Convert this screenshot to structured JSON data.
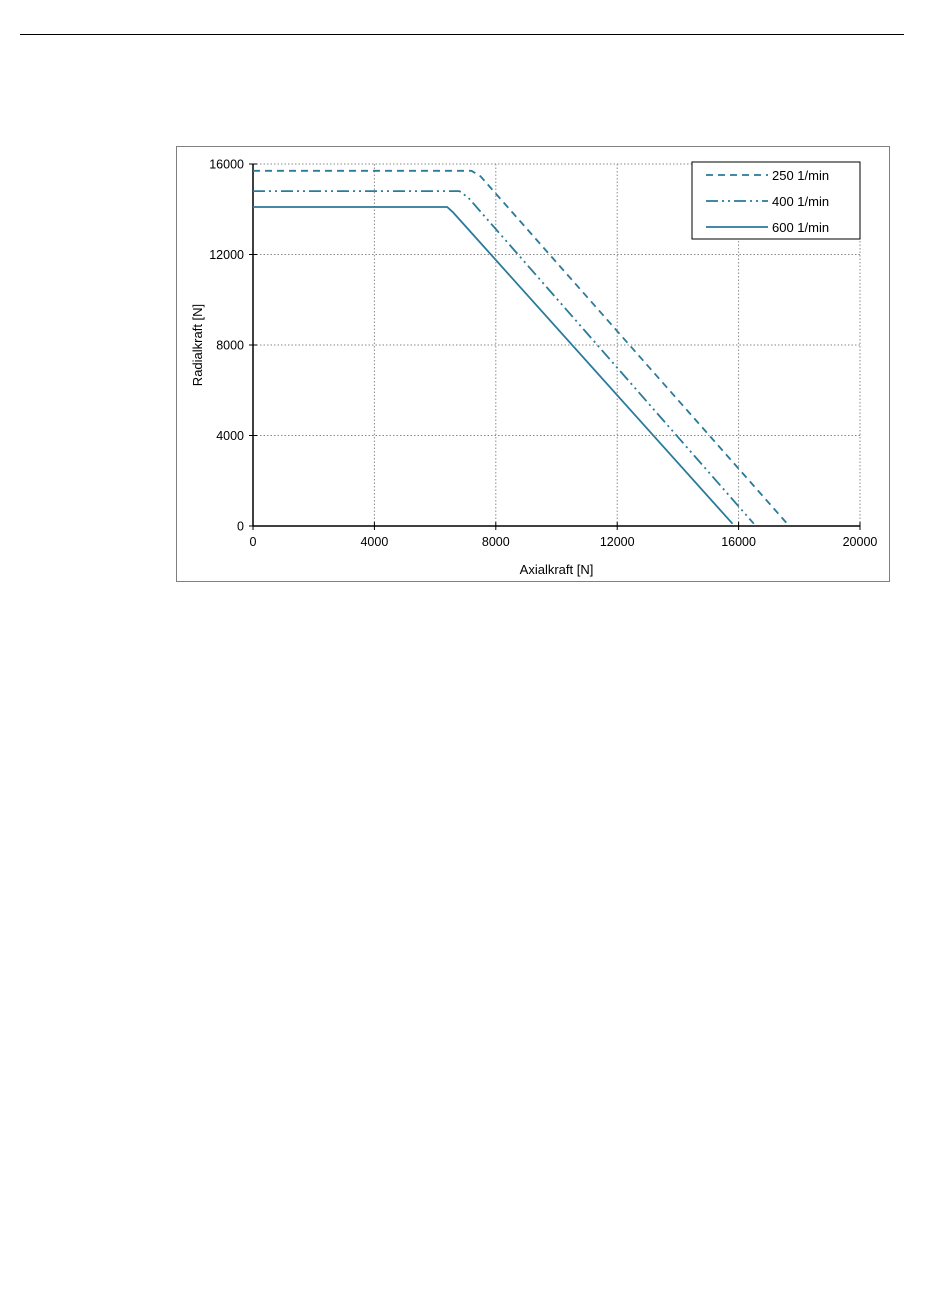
{
  "chart_data": {
    "type": "line",
    "xlabel": "Axialkraft [N]",
    "ylabel": "Radialkraft [N]",
    "xlim": [
      0,
      20000
    ],
    "ylim": [
      0,
      16000
    ],
    "x_ticks": [
      "0",
      "4000",
      "8000",
      "12000",
      "16000",
      "20000"
    ],
    "y_ticks": [
      "0",
      "4000",
      "8000",
      "12000",
      "16000"
    ],
    "grid": true,
    "legend_position": "top-right",
    "line_color": "#2a7a9a",
    "series": [
      {
        "name": "250 1/min",
        "dash": "dashed",
        "points": [
          [
            0,
            15700
          ],
          [
            7200,
            15700
          ],
          [
            7500,
            15450
          ],
          [
            17600,
            100
          ]
        ]
      },
      {
        "name": "400 1/min",
        "dash": "dash-dot-dot",
        "points": [
          [
            0,
            14800
          ],
          [
            6800,
            14800
          ],
          [
            7100,
            14500
          ],
          [
            16500,
            100
          ]
        ]
      },
      {
        "name": "600 1/min",
        "dash": "solid",
        "points": [
          [
            0,
            14100
          ],
          [
            6400,
            14100
          ],
          [
            6600,
            13850
          ],
          [
            15800,
            100
          ]
        ]
      }
    ]
  }
}
